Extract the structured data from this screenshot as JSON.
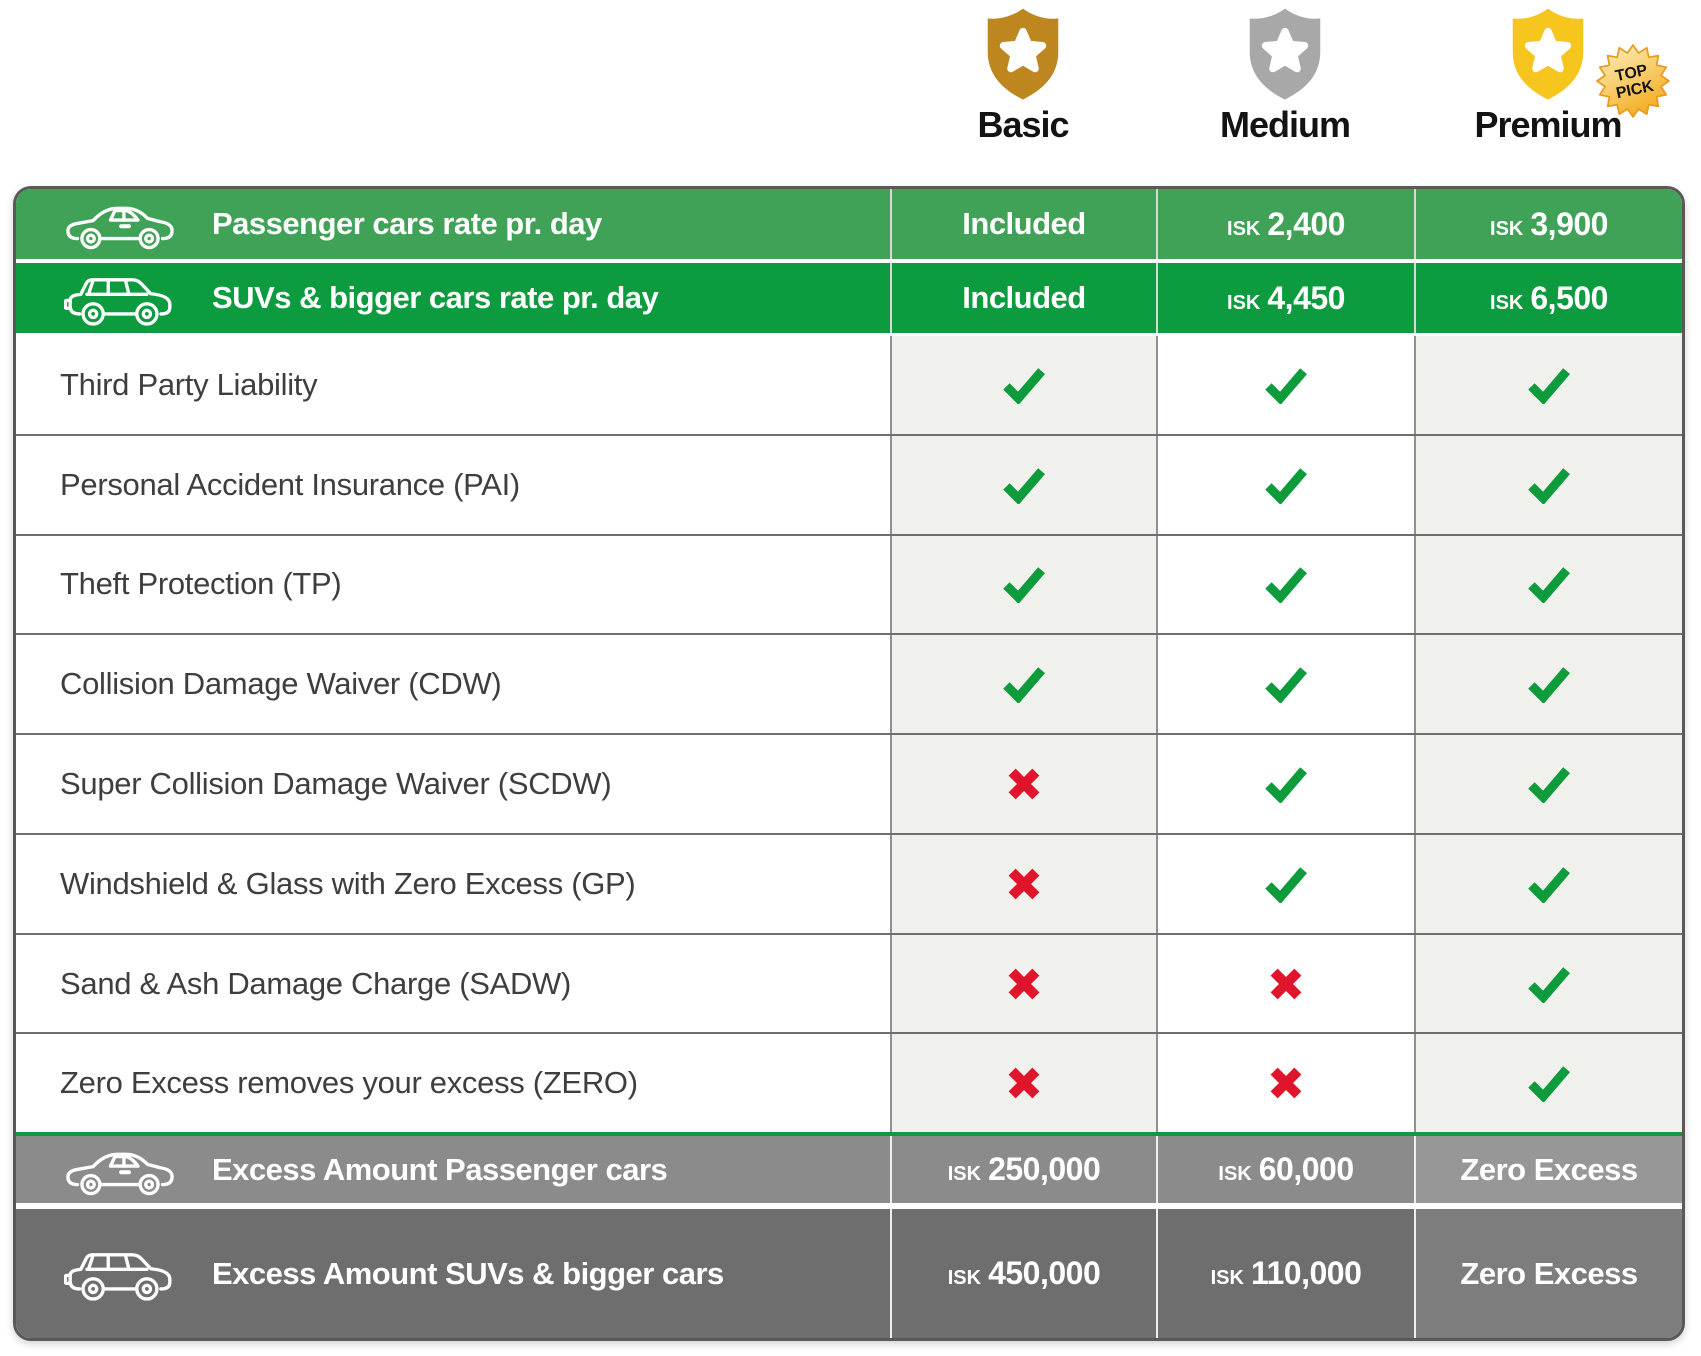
{
  "plans": [
    {
      "name": "Basic",
      "shield_color": "#BE861E"
    },
    {
      "name": "Medium",
      "shield_color": "#A8A8A8"
    },
    {
      "name": "Premium",
      "shield_color": "#F6C61E",
      "badge": {
        "line1": "TOP",
        "line2": "PICK"
      }
    }
  ],
  "rate_rows": [
    {
      "icon": "sedan",
      "label": "Passenger cars rate pr. day",
      "values": [
        {
          "text": "Included"
        },
        {
          "currency": "ISK",
          "amount": "2,400"
        },
        {
          "currency": "ISK",
          "amount": "3,900"
        }
      ]
    },
    {
      "icon": "suv",
      "label": "SUVs & bigger cars rate pr. day",
      "values": [
        {
          "text": "Included"
        },
        {
          "currency": "ISK",
          "amount": "4,450"
        },
        {
          "currency": "ISK",
          "amount": "6,500"
        }
      ]
    }
  ],
  "features": [
    {
      "label": "Third Party Liability",
      "availability": [
        true,
        true,
        true
      ]
    },
    {
      "label": "Personal Accident Insurance (PAI)",
      "availability": [
        true,
        true,
        true
      ]
    },
    {
      "label": "Theft Protection (TP)",
      "availability": [
        true,
        true,
        true
      ]
    },
    {
      "label": "Collision Damage Waiver (CDW)",
      "availability": [
        true,
        true,
        true
      ]
    },
    {
      "label": "Super Collision Damage Waiver (SCDW)",
      "availability": [
        false,
        true,
        true
      ]
    },
    {
      "label": "Windshield & Glass with Zero Excess (GP)",
      "availability": [
        false,
        true,
        true
      ]
    },
    {
      "label": "Sand & Ash Damage Charge (SADW)",
      "availability": [
        false,
        false,
        true
      ]
    },
    {
      "label": "Zero Excess removes your excess (ZERO)",
      "availability": [
        false,
        false,
        true
      ]
    }
  ],
  "excess_rows": [
    {
      "icon": "sedan",
      "label": "Excess Amount Passenger cars",
      "values": [
        {
          "currency": "ISK",
          "amount": "250,000"
        },
        {
          "currency": "ISK",
          "amount": "60,000"
        },
        {
          "text": "Zero Excess"
        }
      ]
    },
    {
      "icon": "suv",
      "label": "Excess Amount SUVs & bigger cars",
      "values": [
        {
          "currency": "ISK",
          "amount": "450,000"
        },
        {
          "currency": "ISK",
          "amount": "110,000"
        },
        {
          "text": "Zero Excess"
        }
      ]
    }
  ],
  "colors": {
    "green_light": "#3FA257",
    "green_dark": "#0C9B3E",
    "row_gray_light": "#8B8B8B",
    "row_gray_dark": "#6E6E6E",
    "row_gray_light_premium": "#979797",
    "row_gray_dark_premium": "#7D7D7D",
    "light_column": "#F0F0EC",
    "check": "#0D9B3B",
    "cross": "#E0152B",
    "badge_fill_top": "#FDF2C3",
    "badge_fill_bottom": "#F3AF25",
    "badge_border": "#E8991F"
  }
}
